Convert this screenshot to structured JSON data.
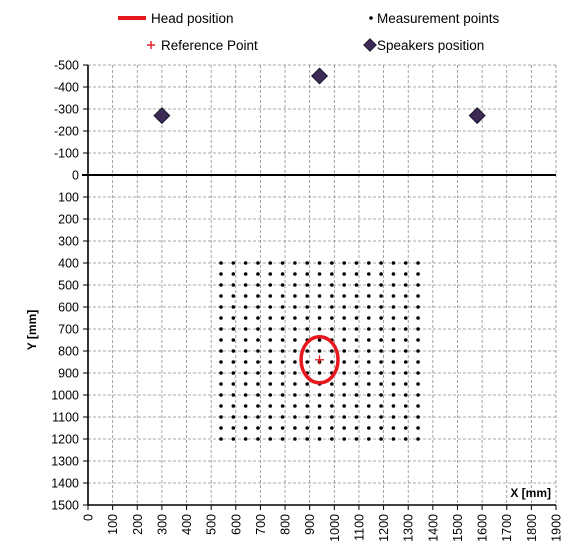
{
  "chart_data": {
    "type": "scatter",
    "title": "",
    "xlabel": "X [mm]",
    "ylabel": "Y [mm]",
    "xlim": [
      0,
      1900
    ],
    "ylim": [
      -500,
      1500
    ],
    "y_axis_inverted": true,
    "x_ticks": [
      "0",
      "100",
      "200",
      "300",
      "400",
      "500",
      "600",
      "700",
      "800",
      "900",
      "1000",
      "1100",
      "1200",
      "1300",
      "1400",
      "1500",
      "1600",
      "1700",
      "1800",
      "1900"
    ],
    "y_ticks": [
      "-500",
      "-400",
      "-300",
      "-200",
      "-100",
      "0",
      "100",
      "200",
      "300",
      "400",
      "500",
      "600",
      "700",
      "800",
      "900",
      "1000",
      "1100",
      "1200",
      "1300",
      "1400",
      "1500"
    ],
    "grid": true,
    "legend_position": "top",
    "colors": {
      "head": "#e8161d",
      "reference": "#e8161d",
      "measurement": "#000000",
      "speaker_fill": "#3d2b55"
    },
    "series": [
      {
        "name": "Head position",
        "kind": "ellipse",
        "center": [
          940,
          840
        ],
        "radius_x": 75,
        "radius_y": 105
      },
      {
        "name": "Measurement points",
        "kind": "grid",
        "x_start": 540,
        "x_end": 1340,
        "x_step": 50,
        "y_start": 400,
        "y_end": 1200,
        "y_step": 50
      },
      {
        "name": "Reference Point",
        "kind": "plus",
        "points": [
          [
            940,
            840
          ]
        ]
      },
      {
        "name": "Speakers position",
        "kind": "diamond",
        "points": [
          [
            300,
            -270
          ],
          [
            940,
            -450
          ],
          [
            1580,
            -270
          ]
        ]
      }
    ]
  }
}
